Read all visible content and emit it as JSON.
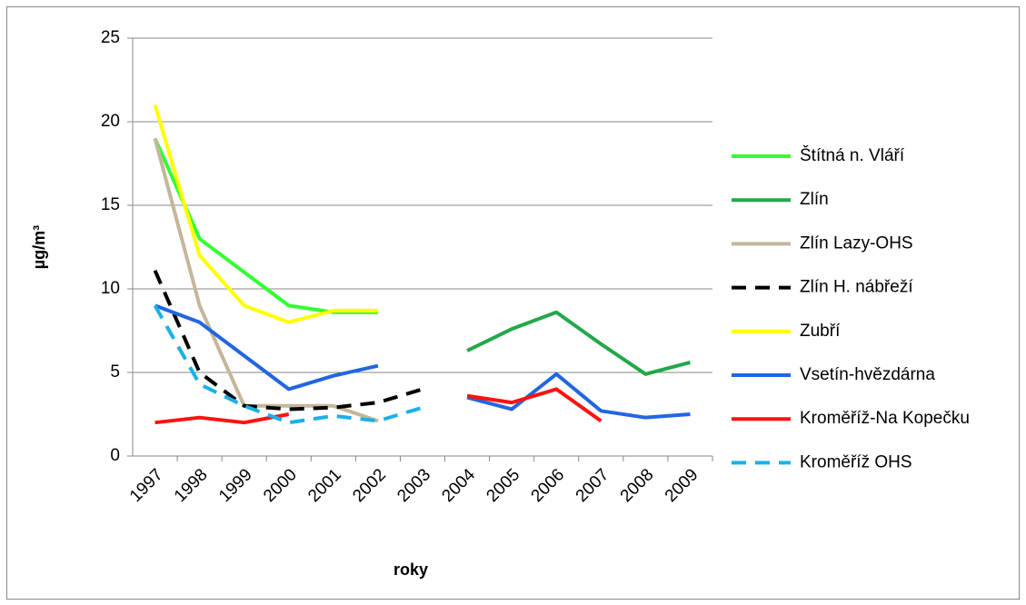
{
  "chart_data": {
    "type": "line",
    "x_label": "roky",
    "y_label": "µg/m³",
    "categories": [
      "1997",
      "1998",
      "1999",
      "2000",
      "2001",
      "2002",
      "2003",
      "2004",
      "2005",
      "2006",
      "2007",
      "2008",
      "2009"
    ],
    "ylim": [
      0,
      25
    ],
    "yticks": [
      0,
      5,
      10,
      15,
      20,
      25
    ],
    "grid": true,
    "legend": "right",
    "series": [
      {
        "name": "Štítná n. Vláří",
        "color": "#33ff33",
        "dashed": false,
        "values": [
          19,
          13,
          11,
          9,
          8.6,
          8.6,
          null,
          null,
          null,
          null,
          null,
          null,
          null
        ]
      },
      {
        "name": "Zlín",
        "color": "#22a84a",
        "dashed": false,
        "values": [
          null,
          null,
          null,
          null,
          null,
          null,
          null,
          6.3,
          7.6,
          8.6,
          6.7,
          4.9,
          5.6
        ]
      },
      {
        "name": "Zlín Lazy-OHS",
        "color": "#c4b69a",
        "dashed": false,
        "values": [
          19,
          9,
          3,
          3,
          3,
          2.1,
          null,
          null,
          null,
          null,
          null,
          null,
          null
        ]
      },
      {
        "name": "Zlín H. nábřeží",
        "color": "#000000",
        "dashed": true,
        "values": [
          11.1,
          5,
          3,
          2.8,
          2.9,
          3.2,
          4,
          null,
          null,
          null,
          null,
          null,
          null
        ]
      },
      {
        "name": "Zubří",
        "color": "#ffff00",
        "dashed": false,
        "values": [
          21,
          12,
          9,
          8,
          8.7,
          8.7,
          null,
          null,
          null,
          null,
          null,
          null,
          null
        ]
      },
      {
        "name": "Vsetín-hvězdárna",
        "color": "#2266e0",
        "dashed": false,
        "values": [
          9,
          8,
          6,
          4,
          4.8,
          5.4,
          null,
          3.5,
          2.8,
          4.9,
          2.7,
          2.3,
          2.5
        ]
      },
      {
        "name": "Kroměříž-Na Kopečku",
        "color": "#ff1111",
        "dashed": false,
        "values": [
          2,
          2.3,
          2,
          2.5,
          null,
          null,
          null,
          3.6,
          3.2,
          4,
          2.1,
          null,
          null
        ]
      },
      {
        "name": "Kroměříž OHS",
        "color": "#1ab0e8",
        "dashed": true,
        "values": [
          9,
          4.3,
          3,
          2,
          2.4,
          2.1,
          2.9,
          null,
          null,
          null,
          null,
          null,
          null
        ]
      }
    ]
  }
}
